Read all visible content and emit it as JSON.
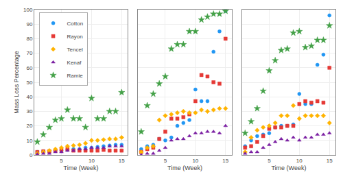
{
  "chart_data": [
    {
      "type": "scatter",
      "xlabel": "Time (Week)",
      "ylabel": "Mass Loss Percentage",
      "x": [
        1,
        2,
        3,
        4,
        5,
        6,
        7,
        8,
        9,
        10,
        11,
        12,
        13,
        14,
        15
      ],
      "series": [
        {
          "name": "Cotton",
          "color": "#2196f3",
          "marker": "circle",
          "values": [
            2,
            2.5,
            2.5,
            3,
            3,
            3.5,
            4,
            4,
            5,
            5,
            5.5,
            6,
            6.5,
            7,
            7
          ]
        },
        {
          "name": "Rayon",
          "color": "#e53935",
          "marker": "square",
          "values": [
            2,
            2.5,
            2.5,
            3,
            3.5,
            4,
            3,
            3,
            3,
            3,
            3,
            3.5,
            3,
            3,
            3
          ]
        },
        {
          "name": "Tencel",
          "color": "#ffb300",
          "marker": "diamond",
          "values": [
            1,
            2,
            3,
            4,
            5,
            6,
            6.5,
            7,
            8,
            10,
            10,
            10.5,
            11,
            11,
            12
          ]
        },
        {
          "name": "Kenaf",
          "color": "#7b1fa2",
          "marker": "triangle-up",
          "values": [
            0.5,
            1,
            1,
            2,
            2,
            3,
            3,
            4,
            4,
            5,
            5,
            5,
            6,
            6,
            6
          ]
        },
        {
          "name": "Ramie",
          "color": "#43a047",
          "marker": "star",
          "values": [
            9,
            14,
            19,
            24,
            25,
            31,
            25,
            25,
            19,
            39,
            25,
            25,
            30,
            30,
            43
          ]
        }
      ],
      "xlim": [
        0.5,
        16
      ],
      "ylim": [
        0,
        100
      ],
      "xticks": [
        5,
        10,
        15
      ],
      "yticks": [
        0,
        10,
        20,
        30,
        40,
        50,
        60,
        70,
        80,
        90,
        100
      ],
      "grid": true,
      "legend": "upper left"
    },
    {
      "type": "scatter",
      "xlabel": "Time (Week)",
      "x": [
        1,
        2,
        3,
        4,
        5,
        6,
        7,
        8,
        9,
        10,
        11,
        12,
        13,
        14,
        15
      ],
      "series": [
        {
          "name": "Cotton",
          "color": "#2196f3",
          "marker": "circle",
          "values": [
            4,
            6,
            7,
            11,
            10,
            12,
            20,
            22,
            24,
            45,
            37,
            37,
            71,
            85,
            99
          ]
        },
        {
          "name": "Rayon",
          "color": "#e53935",
          "marker": "square",
          "values": [
            2,
            4,
            5,
            11,
            16,
            25,
            25,
            26,
            28,
            37,
            55,
            54,
            50,
            49,
            80
          ]
        },
        {
          "name": "Tencel",
          "color": "#ffb300",
          "marker": "diamond",
          "values": [
            2,
            5,
            6,
            24,
            27,
            28,
            29,
            30,
            29,
            29,
            31,
            30,
            31,
            32,
            32
          ]
        },
        {
          "name": "Kenaf",
          "color": "#7b1fa2",
          "marker": "triangle-up",
          "values": [
            0,
            1,
            1,
            3,
            5,
            10,
            11,
            11,
            13,
            15,
            15,
            16,
            16,
            15,
            20
          ]
        },
        {
          "name": "Ramie",
          "color": "#43a047",
          "marker": "star",
          "values": [
            16,
            34,
            42,
            49,
            54,
            73,
            76,
            76,
            85,
            85,
            93,
            95,
            97,
            97,
            99
          ]
        }
      ],
      "xlim": [
        0.5,
        16
      ],
      "ylim": [
        0,
        100
      ],
      "xticks": [
        5,
        10,
        15
      ],
      "yticks": [
        0,
        10,
        20,
        30,
        40,
        50,
        60,
        70,
        80,
        90,
        100
      ],
      "grid": true,
      "tick_labels": "x"
    },
    {
      "type": "scatter",
      "xlabel": "Time (Week)",
      "x": [
        1,
        2,
        3,
        4,
        5,
        6,
        7,
        8,
        9,
        10,
        11,
        12,
        13,
        14,
        15
      ],
      "series": [
        {
          "name": "Cotton",
          "color": "#2196f3",
          "marker": "circle",
          "values": [
            6,
            10,
            13,
            14,
            15,
            19,
            20,
            20,
            21,
            42,
            35,
            35,
            62,
            69,
            96
          ]
        },
        {
          "name": "Rayon",
          "color": "#e53935",
          "marker": "square",
          "values": [
            5,
            6,
            9,
            13,
            18,
            19,
            19,
            20,
            20,
            35,
            37,
            36,
            37,
            36,
            60
          ]
        },
        {
          "name": "Tencel",
          "color": "#ffb300",
          "marker": "diamond",
          "values": [
            2,
            12,
            17,
            19,
            20,
            22,
            27,
            27,
            34,
            25,
            27,
            27,
            27,
            27,
            22
          ]
        },
        {
          "name": "Kenaf",
          "color": "#7b1fa2",
          "marker": "triangle-up",
          "values": [
            1,
            2,
            2,
            5,
            7,
            9,
            11,
            10,
            12,
            10,
            12,
            12,
            14,
            14,
            15
          ]
        },
        {
          "name": "Ramie",
          "color": "#43a047",
          "marker": "star",
          "values": [
            15,
            23,
            32,
            44,
            58,
            65,
            72,
            73,
            84,
            85,
            74,
            75,
            79,
            79,
            89
          ]
        }
      ],
      "xlim": [
        0.5,
        16
      ],
      "ylim": [
        0,
        100
      ],
      "xticks": [
        5,
        10,
        15
      ],
      "yticks": [
        0,
        10,
        20,
        30,
        40,
        50,
        60,
        70,
        80,
        90,
        100
      ],
      "grid": true,
      "tick_labels": "x"
    }
  ]
}
